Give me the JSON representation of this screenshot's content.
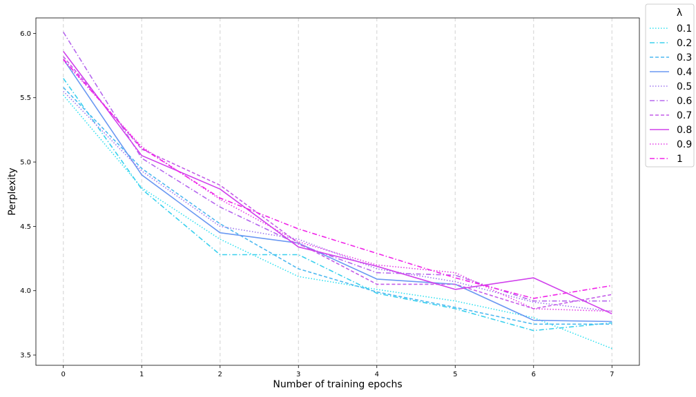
{
  "chart_data": {
    "type": "line",
    "xlabel": "Number of training epochs",
    "ylabel": "Perplexity",
    "x": [
      0,
      1,
      2,
      3,
      4,
      5,
      6,
      7
    ],
    "x_ticks": [
      "0",
      "1",
      "2",
      "3",
      "4",
      "5",
      "6",
      "7"
    ],
    "y_ticks": [
      "3.5",
      "4.0",
      "4.5",
      "5.0",
      "5.5",
      "6.0"
    ],
    "xlim": [
      -0.35,
      7.35
    ],
    "ylim": [
      3.42,
      6.12
    ],
    "vertical_grid": true,
    "legend": {
      "title": "λ",
      "placement": "outside top-right"
    },
    "series": [
      {
        "name": "0.1",
        "color": "#2ee0f0",
        "dash": "dotted",
        "values": [
          5.52,
          4.8,
          4.4,
          4.11,
          4.01,
          3.92,
          3.79,
          3.55
        ]
      },
      {
        "name": "0.2",
        "color": "#38d0ee",
        "dash": "dashdot",
        "values": [
          5.65,
          4.79,
          4.28,
          4.28,
          3.98,
          3.86,
          3.69,
          3.75
        ]
      },
      {
        "name": "0.3",
        "color": "#4cb8f0",
        "dash": "dashed",
        "values": [
          5.58,
          4.95,
          4.52,
          4.17,
          3.99,
          3.87,
          3.74,
          3.74
        ]
      },
      {
        "name": "0.4",
        "color": "#6a98f2",
        "dash": "solid",
        "values": [
          5.8,
          4.9,
          4.45,
          4.37,
          4.09,
          4.05,
          3.77,
          3.76
        ]
      },
      {
        "name": "0.5",
        "color": "#9d75ef",
        "dash": "dotted",
        "values": [
          5.55,
          4.93,
          4.5,
          4.4,
          4.17,
          4.07,
          3.91,
          3.84
        ]
      },
      {
        "name": "0.6",
        "color": "#b566ee",
        "dash": "dashdot",
        "values": [
          6.01,
          5.03,
          4.65,
          4.36,
          4.14,
          4.12,
          3.92,
          3.92
        ]
      },
      {
        "name": "0.7",
        "color": "#c45ce9",
        "dash": "dashed",
        "values": [
          5.82,
          5.1,
          4.82,
          4.37,
          4.05,
          4.05,
          3.86,
          3.97
        ]
      },
      {
        "name": "0.8",
        "color": "#d040ec",
        "dash": "solid",
        "values": [
          5.86,
          5.05,
          4.79,
          4.34,
          4.19,
          4.01,
          4.1,
          3.82
        ]
      },
      {
        "name": "0.9",
        "color": "#e43ae6",
        "dash": "dotted",
        "values": [
          5.79,
          5.12,
          4.71,
          4.38,
          4.2,
          4.14,
          3.86,
          3.84
        ]
      },
      {
        "name": "1",
        "color": "#f022e8",
        "dash": "dashdot",
        "values": [
          5.8,
          5.11,
          4.72,
          4.48,
          4.29,
          4.1,
          3.94,
          4.04
        ]
      }
    ]
  }
}
